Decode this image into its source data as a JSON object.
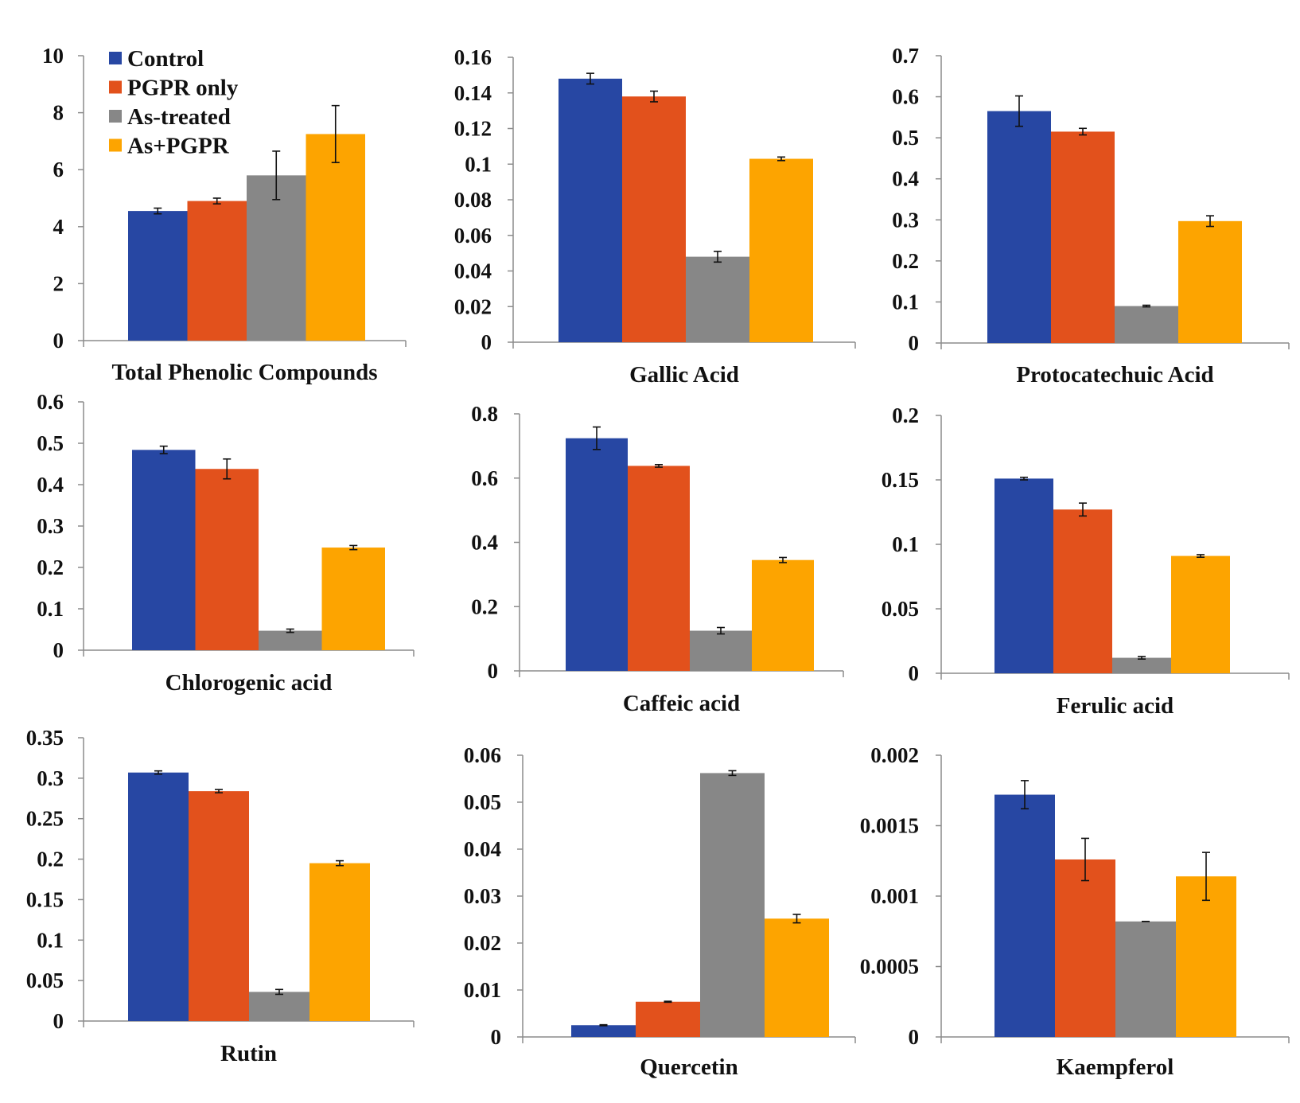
{
  "colors": {
    "Control": "#2747A3",
    "PGPR only": "#E2511C",
    "As-treated": "#878787",
    "As+PGPR": "#FDA400",
    "axis": "#8C8C8C",
    "text": "#111111"
  },
  "legend": {
    "placement": "top-left of first panel",
    "entries": [
      "Control",
      "PGPR only",
      "As-treated",
      "As+PGPR"
    ]
  },
  "chart_data": [
    {
      "type": "bar",
      "xlabel": "Total Phenolic Compounds",
      "series_names": [
        "Control",
        "PGPR only",
        "As-treated",
        "As+PGPR"
      ],
      "values": [
        4.55,
        4.9,
        5.8,
        7.25
      ],
      "errors": [
        0.1,
        0.1,
        0.85,
        1.0
      ],
      "ylim": [
        0,
        10
      ],
      "yticks": [
        "0",
        "2",
        "4",
        "6",
        "8",
        "10"
      ],
      "ytick_values": [
        0,
        2,
        4,
        6,
        8,
        10
      ]
    },
    {
      "type": "bar",
      "xlabel": "Gallic Acid",
      "series_names": [
        "Control",
        "PGPR only",
        "As-treated",
        "As+PGPR"
      ],
      "values": [
        0.148,
        0.138,
        0.048,
        0.103
      ],
      "errors": [
        0.003,
        0.003,
        0.003,
        0.001
      ],
      "ylim": [
        0,
        0.16
      ],
      "yticks": [
        "0",
        "0.02",
        "0.04",
        "0.06",
        "0.08",
        "0.1",
        "0.12",
        "0.14",
        "0.16"
      ],
      "ytick_values": [
        0,
        0.02,
        0.04,
        0.06,
        0.08,
        0.1,
        0.12,
        0.14,
        0.16
      ]
    },
    {
      "type": "bar",
      "xlabel": "Protocatechuic  Acid",
      "series_names": [
        "Control",
        "PGPR only",
        "As-treated",
        "As+PGPR"
      ],
      "values": [
        0.565,
        0.515,
        0.09,
        0.297
      ],
      "errors": [
        0.037,
        0.008,
        0.002,
        0.013
      ],
      "ylim": [
        0,
        0.7
      ],
      "yticks": [
        "0",
        "0.1",
        "0.2",
        "0.3",
        "0.4",
        "0.5",
        "0.6",
        "0.7"
      ],
      "ytick_values": [
        0,
        0.1,
        0.2,
        0.3,
        0.4,
        0.5,
        0.6,
        0.7
      ]
    },
    {
      "type": "bar",
      "xlabel": "Chlorogenic acid",
      "series_names": [
        "Control",
        "PGPR only",
        "As-treated",
        "As+PGPR"
      ],
      "values": [
        0.484,
        0.438,
        0.047,
        0.248
      ],
      "errors": [
        0.009,
        0.024,
        0.004,
        0.005
      ],
      "ylim": [
        0,
        0.6
      ],
      "yticks": [
        "0",
        "0.1",
        "0.2",
        "0.3",
        "0.4",
        "0.5",
        "0.6"
      ],
      "ytick_values": [
        0,
        0.1,
        0.2,
        0.3,
        0.4,
        0.5,
        0.6
      ]
    },
    {
      "type": "bar",
      "xlabel": "Caffeic acid",
      "series_names": [
        "Control",
        "PGPR only",
        "As-treated",
        "As+PGPR"
      ],
      "values": [
        0.724,
        0.638,
        0.125,
        0.345
      ],
      "errors": [
        0.035,
        0.004,
        0.01,
        0.008
      ],
      "ylim": [
        0,
        0.8
      ],
      "yticks": [
        "0",
        "0.2",
        "0.4",
        "0.6",
        "0.8"
      ],
      "ytick_values": [
        0,
        0.2,
        0.4,
        0.6,
        0.8
      ]
    },
    {
      "type": "bar",
      "xlabel": "Ferulic acid",
      "series_names": [
        "Control",
        "PGPR only",
        "As-treated",
        "As+PGPR"
      ],
      "values": [
        0.151,
        0.127,
        0.012,
        0.091
      ],
      "errors": [
        0.001,
        0.005,
        0.001,
        0.001
      ],
      "ylim": [
        0,
        0.2
      ],
      "yticks": [
        "0",
        "0.05",
        "0.1",
        "0.15",
        "0.2"
      ],
      "ytick_values": [
        0,
        0.05,
        0.1,
        0.15,
        0.2
      ]
    },
    {
      "type": "bar",
      "xlabel": "Rutin",
      "series_names": [
        "Control",
        "PGPR only",
        "As-treated",
        "As+PGPR"
      ],
      "values": [
        0.307,
        0.284,
        0.036,
        0.195
      ],
      "errors": [
        0.002,
        0.002,
        0.003,
        0.003
      ],
      "ylim": [
        0,
        0.35
      ],
      "yticks": [
        "0",
        "0.05",
        "0.1",
        "0.15",
        "0.2",
        "0.25",
        "0.3",
        "0.35"
      ],
      "ytick_values": [
        0,
        0.05,
        0.1,
        0.15,
        0.2,
        0.25,
        0.3,
        0.35
      ]
    },
    {
      "type": "bar",
      "xlabel": "Quercetin",
      "series_names": [
        "Control",
        "PGPR only",
        "As-treated",
        "As+PGPR"
      ],
      "values": [
        0.0025,
        0.0075,
        0.0562,
        0.0252
      ],
      "errors": [
        0.0001,
        0.0001,
        0.0005,
        0.0009
      ],
      "ylim": [
        0,
        0.06
      ],
      "yticks": [
        "0",
        "0.01",
        "0.02",
        "0.03",
        "0.04",
        "0.05",
        "0.06"
      ],
      "ytick_values": [
        0,
        0.01,
        0.02,
        0.03,
        0.04,
        0.05,
        0.06
      ]
    },
    {
      "type": "bar",
      "xlabel": "Kaempferol",
      "series_names": [
        "Control",
        "PGPR only",
        "As-treated",
        "As+PGPR"
      ],
      "values": [
        0.00172,
        0.00126,
        0.00082,
        0.00114
      ],
      "errors": [
        0.0001,
        0.00015,
        0.0,
        0.00017
      ],
      "ylim": [
        0,
        0.002
      ],
      "yticks": [
        "0",
        "0.0005",
        "0.001",
        "0.0015",
        "0.002"
      ],
      "ytick_values": [
        0,
        0.0005,
        0.001,
        0.0015,
        0.002
      ]
    }
  ]
}
